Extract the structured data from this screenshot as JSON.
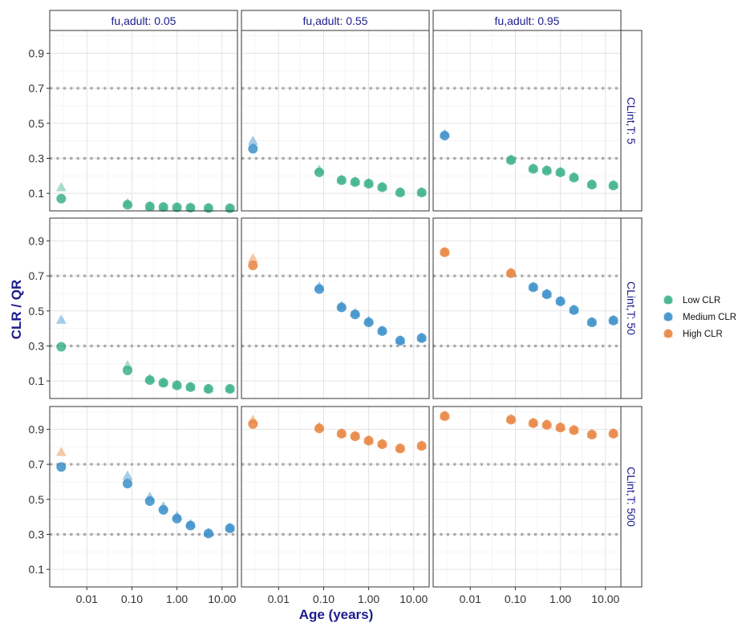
{
  "chart_data": {
    "type": "scatter",
    "xlabel": "Age (years)",
    "ylabel": "CLR / QR",
    "x_scale": "log10",
    "xlim": [
      0.0015,
      22
    ],
    "ylim": [
      0.0,
      1.03
    ],
    "x_ticks": [
      0.01,
      0.1,
      1,
      10
    ],
    "x_tick_labels": [
      "0.01",
      "0.10",
      "1.00",
      "10.00"
    ],
    "y_ticks": [
      0.1,
      0.3,
      0.5,
      0.7,
      0.9
    ],
    "y_tick_labels": [
      "0.1",
      "0.3",
      "0.5",
      "0.7",
      "0.9"
    ],
    "reference_lines_y": [
      0.3,
      0.7
    ],
    "grid": true,
    "col_facet_labels": [
      "fu,adult: 0.05",
      "fu,adult: 0.55",
      "fu,adult: 0.95"
    ],
    "row_facet_labels": [
      "CLint,T: 5",
      "CLint,T: 50",
      "CLint,T: 500"
    ],
    "legend": {
      "position": "right",
      "entries": [
        {
          "label": "Low CLR",
          "color": "#3cb18a"
        },
        {
          "label": "Medium CLR",
          "color": "#3a8fc9"
        },
        {
          "label": "High CLR",
          "color": "#e8843f"
        }
      ]
    },
    "ages": [
      0.0027,
      0.08,
      0.25,
      0.5,
      1.0,
      2.0,
      5.0,
      15.0
    ],
    "marker_note": "circle = CLR/QR, triangle = second estimate (lighter)",
    "panels": [
      {
        "row": 0,
        "col": 0,
        "circles": [
          0.07,
          0.035,
          0.025,
          0.022,
          0.02,
          0.018,
          0.016,
          0.015
        ],
        "triangles": [
          0.135,
          0.045,
          0.028,
          0.024,
          0.022,
          0.02,
          0.018,
          0.017
        ],
        "circle_class": [
          "Low CLR",
          "Low CLR",
          "Low CLR",
          "Low CLR",
          "Low CLR",
          "Low CLR",
          "Low CLR",
          "Low CLR"
        ],
        "triangle_class": [
          "Low CLR",
          "Low CLR",
          "Low CLR",
          "Low CLR",
          "Low CLR",
          "Low CLR",
          "Low CLR",
          "Low CLR"
        ]
      },
      {
        "row": 0,
        "col": 1,
        "circles": [
          0.355,
          0.22,
          0.175,
          0.165,
          0.155,
          0.135,
          0.105,
          0.105
        ],
        "triangles": [
          0.4,
          0.235,
          0.18,
          0.17,
          0.16,
          0.14,
          0.11,
          0.108
        ],
        "circle_class": [
          "Medium CLR",
          "Low CLR",
          "Low CLR",
          "Low CLR",
          "Low CLR",
          "Low CLR",
          "Low CLR",
          "Low CLR"
        ],
        "triangle_class": [
          "Medium CLR",
          "Low CLR",
          "Low CLR",
          "Low CLR",
          "Low CLR",
          "Low CLR",
          "Low CLR",
          "Low CLR"
        ]
      },
      {
        "row": 0,
        "col": 2,
        "circles": [
          0.43,
          0.29,
          0.24,
          0.23,
          0.22,
          0.19,
          0.15,
          0.145
        ],
        "triangles": [
          0.44,
          0.295,
          0.245,
          0.235,
          0.225,
          0.195,
          0.155,
          0.15
        ],
        "circle_class": [
          "Medium CLR",
          "Low CLR",
          "Low CLR",
          "Low CLR",
          "Low CLR",
          "Low CLR",
          "Low CLR",
          "Low CLR"
        ],
        "triangle_class": [
          "Medium CLR",
          "Low CLR",
          "Low CLR",
          "Low CLR",
          "Low CLR",
          "Low CLR",
          "Low CLR",
          "Low CLR"
        ]
      },
      {
        "row": 1,
        "col": 0,
        "circles": [
          0.295,
          0.16,
          0.105,
          0.09,
          0.075,
          0.065,
          0.055,
          0.055
        ],
        "triangles": [
          0.45,
          0.19,
          0.115,
          0.095,
          0.08,
          0.068,
          0.058,
          0.058
        ],
        "circle_class": [
          "Low CLR",
          "Low CLR",
          "Low CLR",
          "Low CLR",
          "Low CLR",
          "Low CLR",
          "Low CLR",
          "Low CLR"
        ],
        "triangle_class": [
          "Medium CLR",
          "Low CLR",
          "Low CLR",
          "Low CLR",
          "Low CLR",
          "Low CLR",
          "Low CLR",
          "Low CLR"
        ]
      },
      {
        "row": 1,
        "col": 1,
        "circles": [
          0.76,
          0.625,
          0.52,
          0.48,
          0.435,
          0.385,
          0.33,
          0.345
        ],
        "triangles": [
          0.8,
          0.64,
          0.53,
          0.49,
          0.445,
          0.39,
          0.335,
          0.35
        ],
        "circle_class": [
          "High CLR",
          "Medium CLR",
          "Medium CLR",
          "Medium CLR",
          "Medium CLR",
          "Medium CLR",
          "Medium CLR",
          "Medium CLR"
        ],
        "triangle_class": [
          "High CLR",
          "Medium CLR",
          "Medium CLR",
          "Medium CLR",
          "Medium CLR",
          "Medium CLR",
          "Medium CLR",
          "Medium CLR"
        ]
      },
      {
        "row": 1,
        "col": 2,
        "circles": [
          0.835,
          0.715,
          0.635,
          0.595,
          0.555,
          0.505,
          0.435,
          0.445
        ],
        "triangles": [
          0.84,
          0.72,
          0.64,
          0.6,
          0.56,
          0.51,
          0.44,
          0.45
        ],
        "circle_class": [
          "High CLR",
          "High CLR",
          "Medium CLR",
          "Medium CLR",
          "Medium CLR",
          "Medium CLR",
          "Medium CLR",
          "Medium CLR"
        ],
        "triangle_class": [
          "High CLR",
          "High CLR",
          "Medium CLR",
          "Medium CLR",
          "Medium CLR",
          "Medium CLR",
          "Medium CLR",
          "Medium CLR"
        ]
      },
      {
        "row": 2,
        "col": 0,
        "circles": [
          0.685,
          0.59,
          0.49,
          0.44,
          0.39,
          0.35,
          0.305,
          0.335
        ],
        "triangles": [
          0.77,
          0.635,
          0.515,
          0.46,
          0.405,
          0.36,
          0.31,
          0.34
        ],
        "circle_class": [
          "Medium CLR",
          "Medium CLR",
          "Medium CLR",
          "Medium CLR",
          "Medium CLR",
          "Medium CLR",
          "Medium CLR",
          "Medium CLR"
        ],
        "triangle_class": [
          "High CLR",
          "Medium CLR",
          "Medium CLR",
          "Medium CLR",
          "Medium CLR",
          "Medium CLR",
          "Medium CLR",
          "Medium CLR"
        ]
      },
      {
        "row": 2,
        "col": 1,
        "circles": [
          0.93,
          0.905,
          0.875,
          0.86,
          0.835,
          0.815,
          0.79,
          0.805
        ],
        "triangles": [
          0.955,
          0.915,
          0.88,
          0.865,
          0.84,
          0.82,
          0.795,
          0.81
        ],
        "circle_class": [
          "High CLR",
          "High CLR",
          "High CLR",
          "High CLR",
          "High CLR",
          "High CLR",
          "High CLR",
          "High CLR"
        ],
        "triangle_class": [
          "High CLR",
          "High CLR",
          "High CLR",
          "High CLR",
          "High CLR",
          "High CLR",
          "High CLR",
          "High CLR"
        ]
      },
      {
        "row": 2,
        "col": 2,
        "circles": [
          0.975,
          0.955,
          0.935,
          0.925,
          0.91,
          0.895,
          0.87,
          0.875
        ],
        "triangles": [
          0.98,
          0.96,
          0.94,
          0.93,
          0.915,
          0.9,
          0.875,
          0.88
        ],
        "circle_class": [
          "High CLR",
          "High CLR",
          "High CLR",
          "High CLR",
          "High CLR",
          "High CLR",
          "High CLR",
          "High CLR"
        ],
        "triangle_class": [
          "High CLR",
          "High CLR",
          "High CLR",
          "High CLR",
          "High CLR",
          "High CLR",
          "High CLR",
          "High CLR"
        ]
      }
    ]
  }
}
